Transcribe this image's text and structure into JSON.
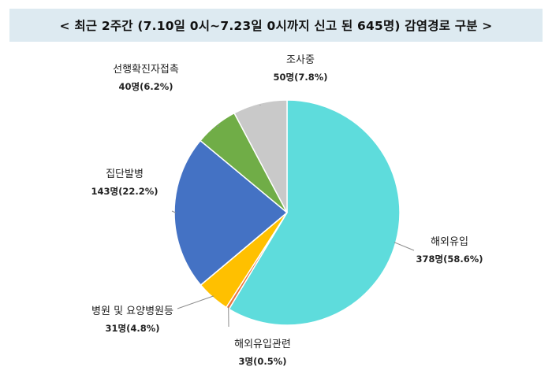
{
  "chart_data": {
    "type": "pie",
    "title": "< 최근 2주간 (7.10일 0시~7.23일 0시까지 신고 된 645명)  감염경로 구분 >",
    "total": 645,
    "slices": [
      {
        "name": "해외유입",
        "value": 378,
        "value_label": "378명(58.6%)",
        "color": "#5edcdc"
      },
      {
        "name": "해외유입관련",
        "value": 3,
        "value_label": "3명(0.5%)",
        "color": "#e8743b"
      },
      {
        "name": "병원 및 요양병원등",
        "value": 31,
        "value_label": "31명(4.8%)",
        "color": "#ffc000"
      },
      {
        "name": "집단발병",
        "value": 143,
        "value_label": "143명(22.2%)",
        "color": "#4472c4"
      },
      {
        "name": "선행확진자접촉",
        "value": 40,
        "value_label": "40명(6.2%)",
        "color": "#70ad47"
      },
      {
        "name": "조사중",
        "value": 50,
        "value_label": "50명(7.8%)",
        "color": "#c9c9c9"
      }
    ]
  }
}
